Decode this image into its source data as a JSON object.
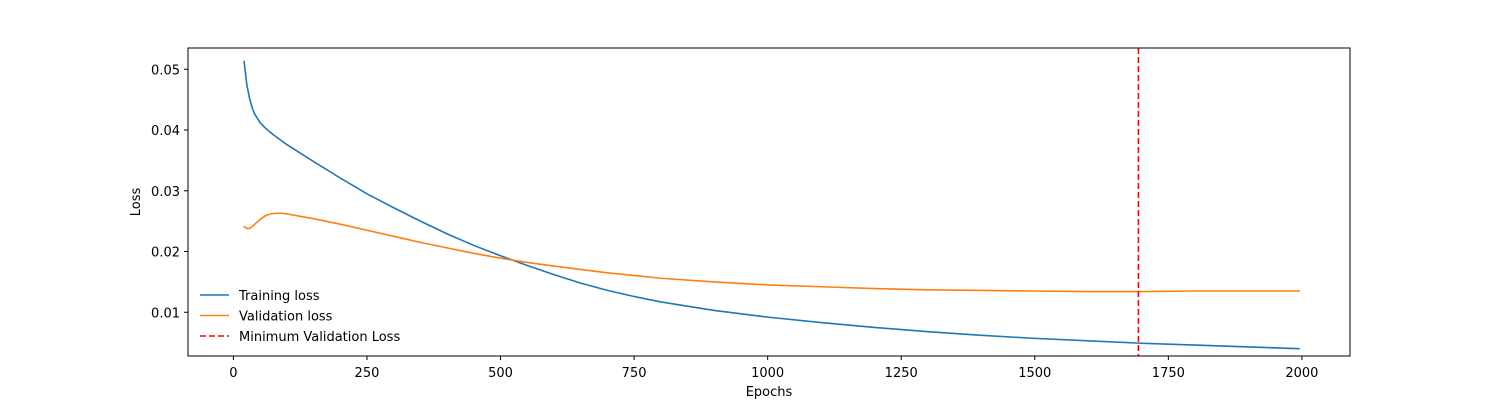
{
  "chart_data": {
    "type": "line",
    "xlabel": "Epochs",
    "ylabel": "Loss",
    "xlim": [
      -85,
      2090
    ],
    "ylim": [
      0.0028,
      0.0535
    ],
    "xticks": [
      0,
      250,
      500,
      750,
      1000,
      1250,
      1500,
      1750,
      2000
    ],
    "xtick_labels": [
      "0",
      "250",
      "500",
      "750",
      "1000",
      "1250",
      "1500",
      "1750",
      "2000"
    ],
    "yticks": [
      0.01,
      0.02,
      0.03,
      0.04,
      0.05
    ],
    "ytick_labels": [
      "0.01",
      "0.02",
      "0.03",
      "0.04",
      "0.05"
    ],
    "grid": false,
    "legend_position": "lower-left",
    "series": [
      {
        "name": "Training loss",
        "color": "#1f77b4",
        "style": "solid",
        "x": [
          20,
          25,
          30,
          35,
          40,
          50,
          60,
          75,
          100,
          150,
          200,
          250,
          300,
          350,
          400,
          450,
          500,
          550,
          600,
          650,
          700,
          750,
          800,
          900,
          1000,
          1100,
          1200,
          1300,
          1400,
          1500,
          1600,
          1700,
          1800,
          1900,
          1995
        ],
        "y": [
          0.0513,
          0.0475,
          0.0453,
          0.0437,
          0.0426,
          0.0412,
          0.0403,
          0.0392,
          0.0376,
          0.0348,
          0.0321,
          0.0295,
          0.0272,
          0.025,
          0.0229,
          0.021,
          0.0193,
          0.0177,
          0.0162,
          0.0148,
          0.0136,
          0.0126,
          0.0117,
          0.0103,
          0.0092,
          0.0083,
          0.0075,
          0.0068,
          0.0062,
          0.0057,
          0.0053,
          0.0049,
          0.0046,
          0.0043,
          0.004
        ]
      },
      {
        "name": "Validation loss",
        "color": "#ff7f0e",
        "style": "solid",
        "x": [
          20,
          25,
          30,
          35,
          40,
          50,
          60,
          70,
          80,
          90,
          100,
          125,
          150,
          200,
          250,
          300,
          350,
          400,
          450,
          500,
          550,
          600,
          700,
          800,
          900,
          1000,
          1100,
          1200,
          1300,
          1400,
          1500,
          1600,
          1694,
          1800,
          1900,
          1995
        ],
        "y": [
          0.0241,
          0.0238,
          0.0238,
          0.0241,
          0.0245,
          0.0253,
          0.0259,
          0.0262,
          0.0263,
          0.0263,
          0.0262,
          0.0258,
          0.0254,
          0.0245,
          0.0235,
          0.0225,
          0.0215,
          0.0206,
          0.0197,
          0.0189,
          0.0182,
          0.0176,
          0.0165,
          0.0156,
          0.015,
          0.0145,
          0.0142,
          0.0139,
          0.0137,
          0.0136,
          0.0135,
          0.0134,
          0.0134,
          0.0135,
          0.0135,
          0.0135
        ]
      }
    ],
    "vlines": [
      {
        "name": "Minimum Validation Loss",
        "x": 1694,
        "color": "#ff0000",
        "style": "dashed"
      }
    ]
  }
}
